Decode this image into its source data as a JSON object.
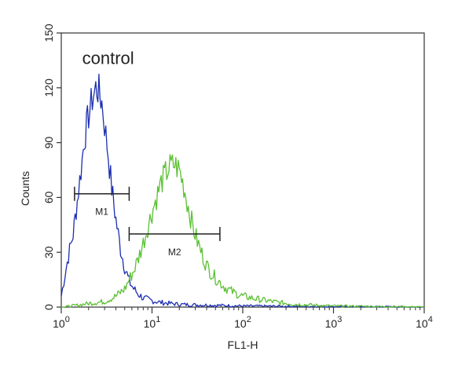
{
  "chart_data": {
    "type": "line",
    "xlabel": "FL1-H",
    "ylabel": "Counts",
    "x_scale": "log",
    "xlim": [
      1,
      10000
    ],
    "ylim": [
      0,
      150
    ],
    "x_ticks": [
      {
        "value": 1,
        "base": "10",
        "exp": "0"
      },
      {
        "value": 10,
        "base": "10",
        "exp": "1"
      },
      {
        "value": 100,
        "base": "10",
        "exp": "2"
      },
      {
        "value": 1000,
        "base": "10",
        "exp": "3"
      },
      {
        "value": 10000,
        "base": "10",
        "exp": "4"
      }
    ],
    "y_ticks": [
      {
        "value": 0,
        "label": "0"
      },
      {
        "value": 30,
        "label": "30"
      },
      {
        "value": 60,
        "label": "60"
      },
      {
        "value": 90,
        "label": "90"
      },
      {
        "value": 120,
        "label": "120"
      },
      {
        "value": 150,
        "label": "150"
      }
    ],
    "grid": false,
    "series": [
      {
        "color": "#1c2fb0",
        "x": [
          1.0,
          1.1,
          1.2,
          1.35,
          1.5,
          1.65,
          1.8,
          2.0,
          2.2,
          2.4,
          2.6,
          2.8,
          3.0,
          3.3,
          3.6,
          4.0,
          4.5,
          5.0,
          5.6,
          6.3,
          7.1,
          8.0,
          10.0,
          12.6,
          15.8,
          20.0,
          31.6,
          50.1,
          100,
          1000,
          10000
        ],
        "y": [
          6,
          18,
          28,
          40,
          58,
          75,
          92,
          105,
          114,
          120,
          118,
          112,
          100,
          83,
          65,
          48,
          32,
          22,
          14,
          10,
          7,
          5,
          3.5,
          2.5,
          2,
          1.5,
          1.2,
          1,
          0.6,
          0.3,
          0
        ]
      },
      {
        "color": "#5cc034",
        "x": [
          1.0,
          1.5,
          2.0,
          3.0,
          4.0,
          5.0,
          5.6,
          6.3,
          7.1,
          8.0,
          9.0,
          10.0,
          11.2,
          12.6,
          14.1,
          15.8,
          17.8,
          20.0,
          22.4,
          25.1,
          28.2,
          31.6,
          35.5,
          39.8,
          44.7,
          50.1,
          63.1,
          79.4,
          100,
          158,
          251,
          398,
          631,
          1000,
          10000
        ],
        "y": [
          0,
          1,
          2,
          3,
          6,
          10,
          15,
          20,
          27,
          35,
          44,
          52,
          60,
          68,
          73,
          77,
          78,
          75,
          66,
          55,
          44,
          36,
          29,
          23,
          19,
          16,
          11,
          8,
          6,
          4,
          2.5,
          1.5,
          1,
          0.6,
          0
        ]
      }
    ],
    "annotations": [
      {
        "text": "control",
        "x": 1.7,
        "y": 133
      }
    ],
    "markers": [
      {
        "label": "M1",
        "x_start": 1.4,
        "x_end": 5.6,
        "y": 62
      },
      {
        "label": "M2",
        "x_start": 5.6,
        "x_end": 56,
        "y": 40
      }
    ]
  }
}
